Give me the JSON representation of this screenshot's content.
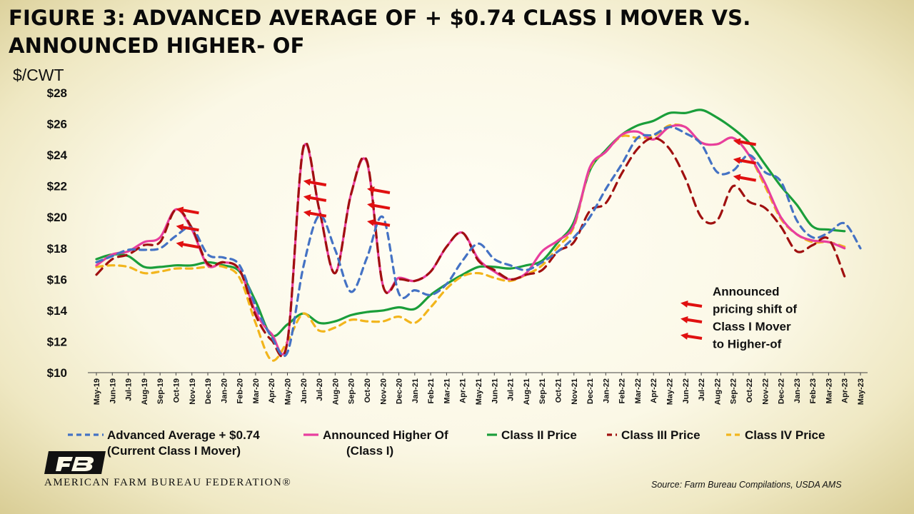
{
  "title": "FIGURE 3: ADVANCED AVERAGE OF + $0.74 CLASS I MOVER VS. ANNOUNCED HIGHER- OF",
  "y_unit": "$/CWT",
  "source": "Source: Farm Bureau Compilations, USDA AMS",
  "org_name": "AMERICAN FARM BUREAU FEDERATION®",
  "annotation": [
    "Announced",
    "pricing shift of",
    "Class I Mover",
    "to Higher-of"
  ],
  "colors": {
    "advanced_average": "#4472c4",
    "announced_higher_of": "#e83e9e",
    "class_ii": "#1a9e3a",
    "class_iii": "#a01010",
    "class_iv": "#f2b51c",
    "arrow": "#e01010"
  },
  "chart_data": {
    "type": "line",
    "x": [
      "May-19",
      "Jun-19",
      "Jul-19",
      "Aug-19",
      "Sep-19",
      "Oct-19",
      "Nov-19",
      "Dec-19",
      "Jan-20",
      "Feb-20",
      "Mar-20",
      "Apr-20",
      "May-20",
      "Jun-20",
      "Jul-20",
      "Aug-20",
      "Sep-20",
      "Oct-20",
      "Nov-20",
      "Dec-20",
      "Jan-21",
      "Feb-21",
      "Mar-21",
      "Apr-21",
      "May-21",
      "Jun-21",
      "Jul-21",
      "Aug-21",
      "Sep-21",
      "Oct-21",
      "Nov-21",
      "Dec-21",
      "Jan-22",
      "Feb-22",
      "Mar-22",
      "Apr-22",
      "May-22",
      "Jun-22",
      "Jul-22",
      "Aug-22",
      "Sep-22",
      "Oct-22",
      "Nov-22",
      "Dec-22",
      "Jan-23",
      "Feb-23",
      "Mar-23",
      "Apr-23",
      "May-23"
    ],
    "ylim": [
      10,
      28
    ],
    "yticks": [
      "$10",
      "$12",
      "$14",
      "$16",
      "$18",
      "$20",
      "$22",
      "$24",
      "$26",
      "$28"
    ],
    "ytick_values": [
      10,
      12,
      14,
      16,
      18,
      20,
      22,
      24,
      26,
      28
    ],
    "grid": false,
    "legend_position": "bottom",
    "series": [
      {
        "name": "Advanced Average + $0.74 (Current Class I Mover)",
        "legend_lines": [
          "Advanced Average + $0.74",
          "(Current Class I Mover)"
        ],
        "style": "dash",
        "values": [
          17.1,
          17.5,
          17.9,
          17.9,
          18.0,
          18.8,
          19.3,
          17.6,
          17.4,
          16.9,
          14.3,
          12.3,
          11.3,
          16.8,
          20.1,
          17.9,
          15.2,
          17.4,
          20.0,
          15.1,
          15.3,
          15.0,
          15.7,
          17.2,
          18.3,
          17.3,
          16.9,
          16.6,
          17.1,
          17.8,
          18.7,
          20.0,
          21.8,
          23.4,
          25.1,
          25.3,
          25.8,
          25.4,
          24.7,
          22.9,
          23.0,
          24.0,
          22.9,
          22.3,
          19.8,
          18.7,
          19.0,
          19.6,
          18.0
        ]
      },
      {
        "name": "Announced Higher Of (Class I)",
        "legend_lines": [
          "Announced Higher Of",
          "(Class I)"
        ],
        "style": "solid",
        "values": [
          16.9,
          17.6,
          17.8,
          18.4,
          18.7,
          20.5,
          19.2,
          16.9,
          17.1,
          16.6,
          13.9,
          12.5,
          12.0,
          24.4,
          20.5,
          16.4,
          21.5,
          23.5,
          15.6,
          16.1,
          15.9,
          16.5,
          18.1,
          19.0,
          17.3,
          16.5,
          16.0,
          16.4,
          17.8,
          18.5,
          19.5,
          23.2,
          24.2,
          25.3,
          25.5,
          25.0,
          25.8,
          25.8,
          24.8,
          24.7,
          25.1,
          24.0,
          22.2,
          20.0,
          18.9,
          18.5,
          18.4,
          18.0,
          null
        ]
      },
      {
        "name": "Class II Price",
        "legend_lines": [
          "Class II Price"
        ],
        "style": "solid",
        "values": [
          17.3,
          17.6,
          17.5,
          16.8,
          16.8,
          16.9,
          16.9,
          17.1,
          16.9,
          16.5,
          14.6,
          12.4,
          13.1,
          13.8,
          13.2,
          13.3,
          13.7,
          13.9,
          14.0,
          14.2,
          14.1,
          15.0,
          15.7,
          16.3,
          16.8,
          16.8,
          16.7,
          16.9,
          17.2,
          18.4,
          19.7,
          23.0,
          24.3,
          25.3,
          25.9,
          26.2,
          26.7,
          26.7,
          26.9,
          26.4,
          25.7,
          24.8,
          23.4,
          22.0,
          20.8,
          19.4,
          19.2,
          19.1,
          null
        ]
      },
      {
        "name": "Class III Price",
        "legend_lines": [
          "Class III Price"
        ],
        "style": "dash",
        "values": [
          16.3,
          17.3,
          17.6,
          18.2,
          18.4,
          20.5,
          19.3,
          17.0,
          17.1,
          16.6,
          13.7,
          12.1,
          12.0,
          24.5,
          20.5,
          16.4,
          21.5,
          23.6,
          15.6,
          16.0,
          15.9,
          16.5,
          18.1,
          19.0,
          17.2,
          16.6,
          16.0,
          16.3,
          16.6,
          17.8,
          18.4,
          20.4,
          20.9,
          22.8,
          24.4,
          25.1,
          24.4,
          22.5,
          20.0,
          19.8,
          22.0,
          21.0,
          20.6,
          19.4,
          17.8,
          18.2,
          18.6,
          16.2,
          null
        ]
      },
      {
        "name": "Class IV Price",
        "legend_lines": [
          "Class IV Price"
        ],
        "style": "dash",
        "values": [
          16.8,
          16.9,
          16.8,
          16.4,
          16.5,
          16.7,
          16.7,
          16.8,
          16.8,
          16.1,
          13.2,
          10.8,
          12.0,
          13.8,
          12.7,
          12.9,
          13.4,
          13.3,
          13.3,
          13.6,
          13.2,
          14.2,
          15.4,
          16.2,
          16.4,
          16.1,
          15.9,
          16.3,
          16.9,
          18.1,
          19.4,
          23.1,
          24.2,
          25.2,
          25.1,
          25.2,
          25.9,
          25.8,
          24.8,
          24.7,
          25.1,
          24.0,
          22.0,
          19.9,
          18.9,
          18.4,
          18.4,
          18.1,
          null
        ]
      }
    ]
  }
}
